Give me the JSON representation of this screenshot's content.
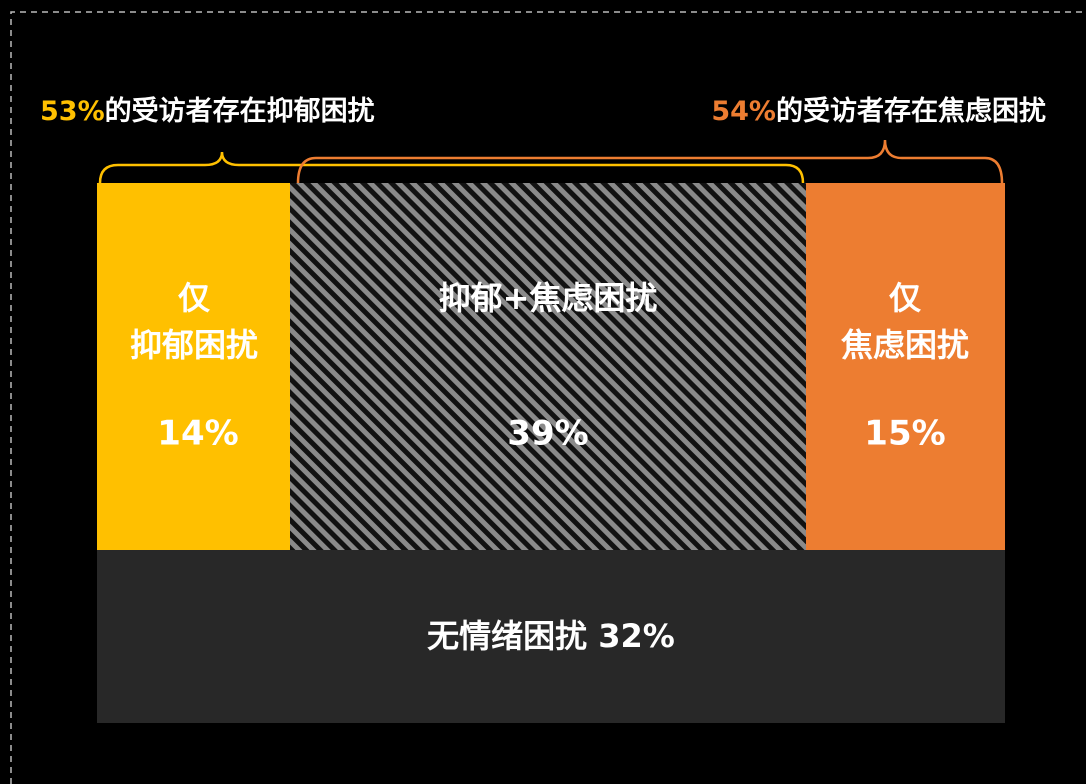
{
  "header": {
    "left": {
      "percent": "53%",
      "text": "的受访者存在抑郁困扰"
    },
    "right": {
      "percent": "54%",
      "text": "的受访者存在焦虑困扰"
    }
  },
  "blocks": [
    {
      "line1": "仅",
      "line2": "抑郁困扰",
      "value": "14%"
    },
    {
      "label": "抑郁+焦虑困扰",
      "value": "39%"
    },
    {
      "line1": "仅",
      "line2": "焦虑困扰",
      "value": "15%"
    }
  ],
  "footer": {
    "label": "无情绪困扰 32%"
  }
}
